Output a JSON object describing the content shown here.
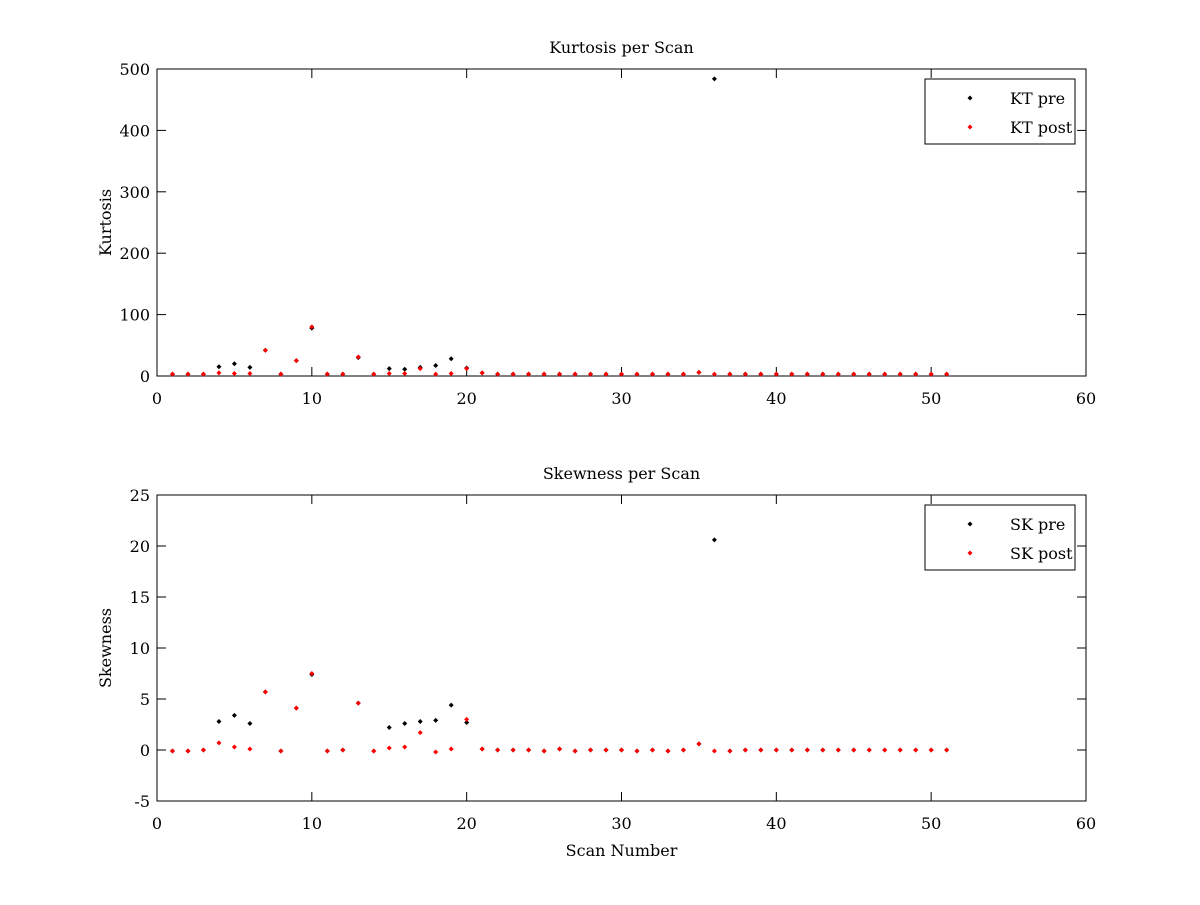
{
  "chart_data": [
    {
      "type": "scatter",
      "title": "Kurtosis per Scan",
      "xlabel": "",
      "ylabel": "Kurtosis",
      "xlim": [
        0,
        60
      ],
      "ylim": [
        0,
        500
      ],
      "xticks": [
        "0",
        "10",
        "20",
        "30",
        "40",
        "50",
        "60"
      ],
      "yticks": [
        "0",
        "100",
        "200",
        "300",
        "400",
        "500"
      ],
      "grid": false,
      "legend_position": "top-right",
      "series": [
        {
          "name": "KT pre",
          "color": "#000000",
          "x": [
            1,
            2,
            3,
            4,
            5,
            6,
            7,
            8,
            9,
            10,
            11,
            12,
            13,
            14,
            15,
            16,
            17,
            18,
            19,
            20,
            21,
            22,
            23,
            24,
            25,
            26,
            27,
            28,
            29,
            30,
            31,
            32,
            33,
            34,
            35,
            36,
            37,
            38,
            39,
            40,
            41,
            42,
            43,
            44,
            45,
            46,
            47,
            48,
            49,
            50,
            51
          ],
          "y": [
            3,
            3,
            3,
            15,
            20,
            14,
            42,
            3,
            25,
            78,
            3,
            3,
            30,
            3,
            12,
            11,
            14,
            17,
            28,
            13,
            5,
            3,
            3,
            3,
            3,
            3,
            3,
            3,
            3,
            3,
            3,
            3,
            3,
            3,
            6,
            484,
            3,
            3,
            3,
            3,
            3,
            3,
            3,
            3,
            3,
            3,
            3,
            3,
            3,
            3,
            3
          ]
        },
        {
          "name": "KT post",
          "color": "#ff0000",
          "x": [
            1,
            2,
            3,
            4,
            5,
            6,
            7,
            8,
            9,
            10,
            11,
            12,
            13,
            14,
            15,
            16,
            17,
            18,
            19,
            20,
            21,
            22,
            23,
            24,
            25,
            26,
            27,
            28,
            29,
            30,
            31,
            32,
            33,
            34,
            35,
            36,
            37,
            38,
            39,
            40,
            41,
            42,
            43,
            44,
            45,
            46,
            47,
            48,
            49,
            50,
            51
          ],
          "y": [
            3,
            3,
            3,
            5,
            4,
            4,
            42,
            3,
            25,
            80,
            3,
            3,
            31,
            3,
            4,
            4,
            12,
            3,
            4,
            12,
            5,
            3,
            3,
            3,
            3,
            3,
            3,
            3,
            3,
            3,
            3,
            3,
            3,
            3,
            6,
            3,
            3,
            3,
            3,
            3,
            3,
            3,
            3,
            3,
            3,
            3,
            3,
            3,
            3,
            3,
            3
          ]
        }
      ]
    },
    {
      "type": "scatter",
      "title": "Skewness per Scan",
      "xlabel": "Scan Number",
      "ylabel": "Skewness",
      "xlim": [
        0,
        60
      ],
      "ylim": [
        -5,
        25
      ],
      "xticks": [
        "0",
        "10",
        "20",
        "30",
        "40",
        "50",
        "60"
      ],
      "yticks": [
        "-5",
        "0",
        "5",
        "10",
        "15",
        "20",
        "25"
      ],
      "grid": false,
      "legend_position": "top-right",
      "series": [
        {
          "name": "SK pre",
          "color": "#000000",
          "x": [
            1,
            2,
            3,
            4,
            5,
            6,
            7,
            8,
            9,
            10,
            11,
            12,
            13,
            14,
            15,
            16,
            17,
            18,
            19,
            20,
            21,
            22,
            23,
            24,
            25,
            26,
            27,
            28,
            29,
            30,
            31,
            32,
            33,
            34,
            35,
            36,
            37,
            38,
            39,
            40,
            41,
            42,
            43,
            44,
            45,
            46,
            47,
            48,
            49,
            50,
            51
          ],
          "y": [
            -0.1,
            -0.1,
            0,
            2.8,
            3.4,
            2.6,
            5.7,
            -0.1,
            4.1,
            7.4,
            -0.1,
            0,
            4.6,
            -0.1,
            2.2,
            2.6,
            2.8,
            2.9,
            4.4,
            2.7,
            0.1,
            0,
            0,
            0,
            -0.1,
            0.1,
            -0.1,
            0,
            0,
            0,
            -0.1,
            0,
            -0.1,
            0,
            0.6,
            20.6,
            -0.1,
            0,
            0,
            0,
            0,
            0,
            0,
            0,
            0,
            0,
            0,
            0,
            0,
            0,
            0
          ]
        },
        {
          "name": "SK post",
          "color": "#ff0000",
          "x": [
            1,
            2,
            3,
            4,
            5,
            6,
            7,
            8,
            9,
            10,
            11,
            12,
            13,
            14,
            15,
            16,
            17,
            18,
            19,
            20,
            21,
            22,
            23,
            24,
            25,
            26,
            27,
            28,
            29,
            30,
            31,
            32,
            33,
            34,
            35,
            36,
            37,
            38,
            39,
            40,
            41,
            42,
            43,
            44,
            45,
            46,
            47,
            48,
            49,
            50,
            51
          ],
          "y": [
            -0.1,
            -0.1,
            0,
            0.7,
            0.3,
            0.1,
            5.7,
            -0.1,
            4.1,
            7.5,
            -0.1,
            0,
            4.6,
            -0.1,
            0.2,
            0.3,
            1.7,
            -0.2,
            0.1,
            3.0,
            0.1,
            0,
            0,
            0,
            -0.1,
            0.1,
            -0.1,
            0,
            0,
            0,
            -0.1,
            0,
            -0.1,
            0,
            0.6,
            -0.1,
            -0.1,
            0,
            0,
            0,
            0,
            0,
            0,
            0,
            0,
            0,
            0,
            0,
            0,
            0,
            0
          ]
        }
      ]
    }
  ]
}
